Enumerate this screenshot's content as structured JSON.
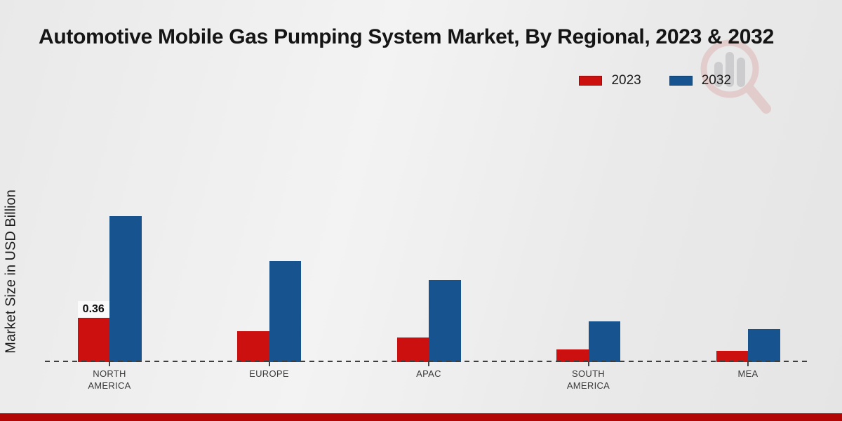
{
  "header": {
    "title": "Automotive Mobile Gas Pumping System Market, By Regional, 2023 & 2032"
  },
  "legend": {
    "items": [
      {
        "label": "2023",
        "color": "#cc1010"
      },
      {
        "label": "2032",
        "color": "#17538f"
      }
    ]
  },
  "y_axis": {
    "label": "Market Size in USD Billion"
  },
  "watermark": {
    "icon": "magnifier-bar-chart-logo-icon"
  },
  "footer": {
    "bar_color": "#b20606"
  },
  "chart_data": {
    "type": "bar",
    "title": "Automotive Mobile Gas Pumping System Market, By Regional, 2023 & 2032",
    "xlabel": "",
    "ylabel": "Market Size in USD Billion",
    "categories": [
      "NORTH AMERICA",
      "EUROPE",
      "APAC",
      "SOUTH AMERICA",
      "MEA"
    ],
    "series": [
      {
        "name": "2023",
        "color": "#cc1010",
        "values": [
          0.36,
          0.25,
          0.2,
          0.1,
          0.09
        ]
      },
      {
        "name": "2032",
        "color": "#17538f",
        "values": [
          1.19,
          0.82,
          0.67,
          0.33,
          0.27
        ]
      }
    ],
    "annotations": [
      {
        "category_index": 0,
        "series_index": 0,
        "text": "0.36"
      }
    ],
    "ylim": [
      0,
      1.3
    ],
    "grid": false,
    "baseline_style": "dashed",
    "legend_position": "top-right"
  }
}
